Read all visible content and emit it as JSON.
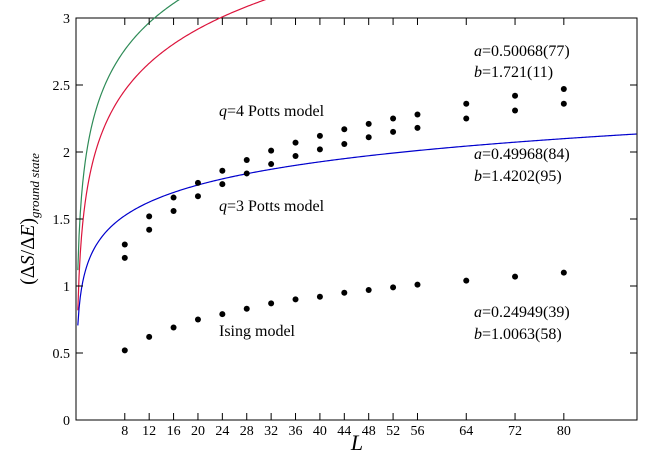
{
  "chart_data": {
    "type": "line",
    "xlabel": "L",
    "ylabel_parts": {
      "open": "(",
      "delta1": "Δ",
      "s": "S",
      "slash": "/",
      "delta2": "Δ",
      "e": "E",
      "close": ")",
      "subscript": "ground state"
    },
    "xlim": [
      0,
      92
    ],
    "ylim": [
      0,
      3
    ],
    "x_ticks": [
      8,
      12,
      16,
      20,
      24,
      28,
      32,
      36,
      40,
      44,
      48,
      52,
      56,
      64,
      72,
      80
    ],
    "y_ticks": [
      0,
      0.5,
      1,
      1.5,
      2,
      2.5,
      3
    ],
    "y_tick_labels": [
      "0",
      "0.5",
      "1",
      "1.5",
      "2",
      "2.5",
      "3"
    ],
    "x": [
      8,
      12,
      16,
      20,
      24,
      28,
      32,
      36,
      40,
      44,
      48,
      52,
      56,
      64,
      72,
      80
    ],
    "series": [
      {
        "label_parts": {
          "q": "q",
          "rest": "=4 Potts model"
        },
        "color": "#2e8b57",
        "a": 0.50068,
        "b": 1.721,
        "fit_text": {
          "a_sym": "a",
          "a_val": "=0.50068(77)",
          "b_sym": "b",
          "b_val": "=1.721(11)"
        },
        "values": [
          1.31,
          1.52,
          1.66,
          1.77,
          1.86,
          1.94,
          2.01,
          2.07,
          2.12,
          2.17,
          2.21,
          2.25,
          2.28,
          2.36,
          2.42,
          2.47
        ]
      },
      {
        "label_parts": {
          "q": "q",
          "rest": "=3 Potts model"
        },
        "color": "#dc143c",
        "a": 0.49968,
        "b": 1.4202,
        "fit_text": {
          "a_sym": "a",
          "a_val": "=0.49968(84)",
          "b_sym": "b",
          "b_val": "=1.4202(95)"
        },
        "values": [
          1.21,
          1.42,
          1.56,
          1.67,
          1.76,
          1.84,
          1.91,
          1.97,
          2.02,
          2.06,
          2.11,
          2.15,
          2.18,
          2.25,
          2.31,
          2.36
        ]
      },
      {
        "label_parts": {
          "q": "",
          "rest": "Ising model"
        },
        "color": "#0000cd",
        "a": 0.24949,
        "b": 1.0063,
        "fit_text": {
          "a_sym": "a",
          "a_val": "=0.24949(39)",
          "b_sym": "b",
          "b_val": "=1.0063(58)"
        },
        "values": [
          0.52,
          0.62,
          0.69,
          0.75,
          0.79,
          0.83,
          0.87,
          0.9,
          0.92,
          0.95,
          0.97,
          0.99,
          1.01,
          1.04,
          1.07,
          1.1
        ]
      }
    ]
  }
}
